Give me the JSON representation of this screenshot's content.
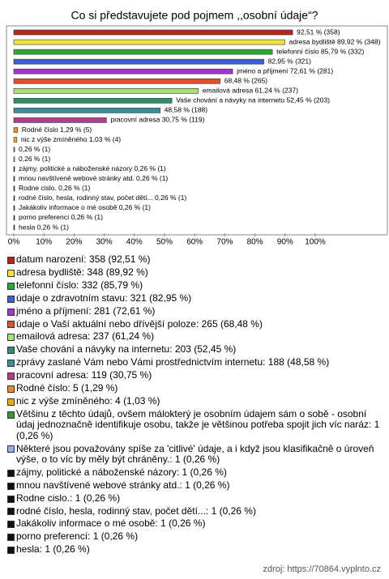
{
  "chart_data": {
    "type": "barh",
    "title": "Co si představujete pod pojmem ,,osobní údaje“?",
    "categories": [
      "datum narození: 358 (92,51 %)",
      "adresa bydliště: 348 (89,92 %)",
      "telefonní číslo: 332 (85,79 %)",
      "údaje o zdravotním stavu: 321 (82,95 %)",
      "jméno a příjmení: 281 (72,61 %)",
      "údaje o Vaší aktuální nebo dřívější poloze: 265 (68,48 %)",
      "emailová adresa: 237 (61,24 %)",
      "Vaše chování a návyky na internetu: 203 (52,45 %)",
      "zprávy zaslané Vám nebo Vámi prostřednictvím internetu: 188 (48,58 %)",
      "pracovní adresa: 119 (30,75 %)",
      "Rodné číslo: 5 (1,29 %)",
      "nic z výše zmíněného: 4 (1,03 %)",
      "Většinu z těchto údajů, ovšem málokterý je osobním údajem sám o sobě - osobní údaj jednoznačně identifikuje osobu, takže je většinou potřeba spojit jich víc naráz: 1 (0,26 %)",
      "Některé jsou považovány spíše za 'citlivé' údaje, a i když jsou klasifikačně o úroveň výše, o to víc by měly být chráněny.: 1 (0,26 %)",
      "zájmy, politické a náboženské názory: 1 (0,26 %)",
      "mnou navštívené webové stránky atd.: 1 (0,26 %)",
      "Rodne cislo.: 1 (0,26 %)",
      "rodné číslo, hesla, rodinný stav, počet dětí...: 1 (0,26 %)",
      "Jakákoliv informace o mé osobě: 1 (0,26 %)",
      "porno preferencí: 1 (0,26 %)",
      "hesla: 1 (0,26 %)"
    ],
    "values": [
      92.51,
      89.92,
      85.79,
      82.95,
      72.61,
      68.48,
      61.24,
      52.45,
      48.58,
      30.75,
      1.29,
      1.03,
      0.26,
      0.26,
      0.26,
      0.26,
      0.26,
      0.26,
      0.26,
      0.26,
      0.26
    ],
    "value_labels": [
      "92,51 % (358)",
      "adresa bydliště 89,92 % (348)",
      "telefonní číslo 85,79 % (332)",
      "82,95 % (321)",
      "jméno a příjmení 72,61 % (281)",
      "68,48 % (265)",
      "emailová adresa 61,24 % (237)",
      "Vaše chování a návyky na internetu 52,45 % (203)",
      "48,58 % (188)",
      "pracovní adresa 30,75 % (119)",
      "Rodné číslo 1,29 % (5)",
      "nic z výše zmíněného 1,03 % (4)",
      "0,26 % (1)",
      "0,26 % (1)",
      "zájmy, politické a náboženské názory 0,26 % (1)",
      "mnou navštívené webové stránky atd. 0,26 % (1)",
      "Rodne cislo. 0,26 % (1)",
      "rodné číslo, hesla, rodinný stav, počet dětí... 0,26 % (1)",
      "Jakákoliv informace o mé osobě 0,26 % (1)",
      "porno preferencí 0,26 % (1)",
      "hesla 0,26 % (1)"
    ],
    "colors": [
      "#b3261e",
      "#f2e33a",
      "#2fa83a",
      "#3f5fd6",
      "#a535c9",
      "#d8542a",
      "#a6e07a",
      "#2e8f6a",
      "#3a8e9a",
      "#b53c8c",
      "#f08a2a",
      "#e0b020",
      "#2e9a3a",
      "#8fb0e8",
      "#111111",
      "#111111",
      "#111111",
      "#111111",
      "#111111",
      "#111111",
      "#111111"
    ],
    "xlim": [
      0,
      100
    ],
    "xticks": [
      {
        "value": 0,
        "label": "0%"
      },
      {
        "value": 10,
        "label": "10%"
      },
      {
        "value": 20,
        "label": "20%"
      },
      {
        "value": 30,
        "label": "30%"
      },
      {
        "value": 40,
        "label": "40%"
      },
      {
        "value": 50,
        "label": "50%"
      },
      {
        "value": 60,
        "label": "60%"
      },
      {
        "value": 70,
        "label": "70%"
      },
      {
        "value": 80,
        "label": "80%"
      },
      {
        "value": 90,
        "label": "90%"
      },
      {
        "value": 100,
        "label": "100%"
      }
    ]
  },
  "source": "zdroj: https://70864.vyplnto.cz"
}
